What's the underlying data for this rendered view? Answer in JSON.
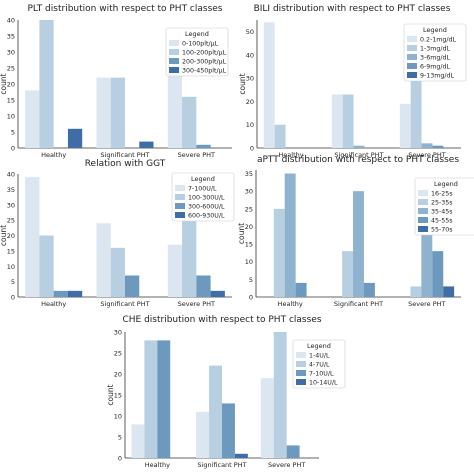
{
  "palette": [
    "#dce6f0",
    "#b8cfe2",
    "#8fb2cf",
    "#6d99bf",
    "#3f6ea6"
  ],
  "chart_data": [
    {
      "type": "bar",
      "title": "PLT distribution with respect to PHT classes",
      "xlabel": "",
      "ylabel": "count",
      "categories": [
        "Healthy",
        "Significant PHT",
        "Severe PHT"
      ],
      "ylim": [
        0,
        40
      ],
      "yticks": [
        0,
        5,
        10,
        15,
        20,
        25,
        30,
        35,
        40
      ],
      "legend_title": "Legend",
      "legend_position": "right",
      "series": [
        {
          "name": "0-100plt/μL",
          "values": [
            18,
            22,
            35
          ]
        },
        {
          "name": "100-200plt/μL",
          "values": [
            40,
            22,
            16
          ]
        },
        {
          "name": "200-300plt/μL",
          "values": [
            0,
            0,
            1
          ]
        },
        {
          "name": "300-450plt/μL",
          "values": [
            6,
            2,
            0
          ]
        }
      ]
    },
    {
      "type": "bar",
      "title": "BILI distribution with respect to PHT classes",
      "xlabel": "",
      "ylabel": "count",
      "categories": [
        "Healthy",
        "Significant PHT",
        "Severe PHT"
      ],
      "ylim": [
        0,
        55
      ],
      "yticks": [
        0,
        10,
        20,
        30,
        40,
        50
      ],
      "legend_title": "Legend",
      "legend_position": "right",
      "series": [
        {
          "name": "0.2-1mg/dL",
          "values": [
            54,
            23,
            19
          ]
        },
        {
          "name": "1-3mg/dL",
          "values": [
            10,
            23,
            30
          ]
        },
        {
          "name": "3-6mg/dL",
          "values": [
            0,
            1,
            2
          ]
        },
        {
          "name": "6-9mg/dL",
          "values": [
            0,
            0,
            1
          ]
        },
        {
          "name": "9-13mg/dL",
          "values": [
            0,
            0,
            0
          ]
        }
      ]
    },
    {
      "type": "bar",
      "title": "Relation with GGT",
      "xlabel": "",
      "ylabel": "count",
      "categories": [
        "Healthy",
        "Significant PHT",
        "Severe PHT"
      ],
      "ylim": [
        0,
        40
      ],
      "yticks": [
        0,
        5,
        10,
        15,
        20,
        25,
        30,
        35,
        40
      ],
      "legend_title": "Legend",
      "legend_position": "right",
      "series": [
        {
          "name": "7-100U/L",
          "values": [
            39,
            24,
            17
          ]
        },
        {
          "name": "100-300U/L",
          "values": [
            20,
            16,
            26
          ]
        },
        {
          "name": "300-600U/L",
          "values": [
            2,
            7,
            7
          ]
        },
        {
          "name": "600-930U/L",
          "values": [
            2,
            0,
            2
          ]
        }
      ]
    },
    {
      "type": "bar",
      "title": "aPTT distribution with respect to PHT classes",
      "xlabel": "",
      "ylabel": "count",
      "categories": [
        "Healthy",
        "Significant PHT",
        "Severe PHT"
      ],
      "ylim": [
        0,
        36
      ],
      "yticks": [
        0,
        5,
        10,
        15,
        20,
        25,
        30,
        35
      ],
      "legend_title": "Legend",
      "legend_position": "right",
      "series": [
        {
          "name": "16-25s",
          "values": [
            0,
            0,
            0
          ]
        },
        {
          "name": "25-35s",
          "values": [
            25,
            13,
            3
          ]
        },
        {
          "name": "35-45s",
          "values": [
            35,
            30,
            33
          ]
        },
        {
          "name": "45-55s",
          "values": [
            4,
            4,
            13
          ]
        },
        {
          "name": "55-70s",
          "values": [
            0,
            0,
            3
          ]
        }
      ]
    },
    {
      "type": "bar",
      "title": "CHE distribution with respect to PHT classes",
      "xlabel": "",
      "ylabel": "count",
      "categories": [
        "Healthy",
        "Significant PHT",
        "Severe PHT"
      ],
      "ylim": [
        0,
        30
      ],
      "yticks": [
        0,
        5,
        10,
        15,
        20,
        25,
        30
      ],
      "legend_title": "Legend",
      "legend_position": "right",
      "series": [
        {
          "name": "1-4U/L",
          "values": [
            8,
            11,
            19
          ]
        },
        {
          "name": "4-7U/L",
          "values": [
            28,
            22,
            30
          ]
        },
        {
          "name": "7-10U/L",
          "values": [
            28,
            13,
            3
          ]
        },
        {
          "name": "10-14U/L",
          "values": [
            0,
            1,
            0
          ]
        }
      ]
    }
  ]
}
